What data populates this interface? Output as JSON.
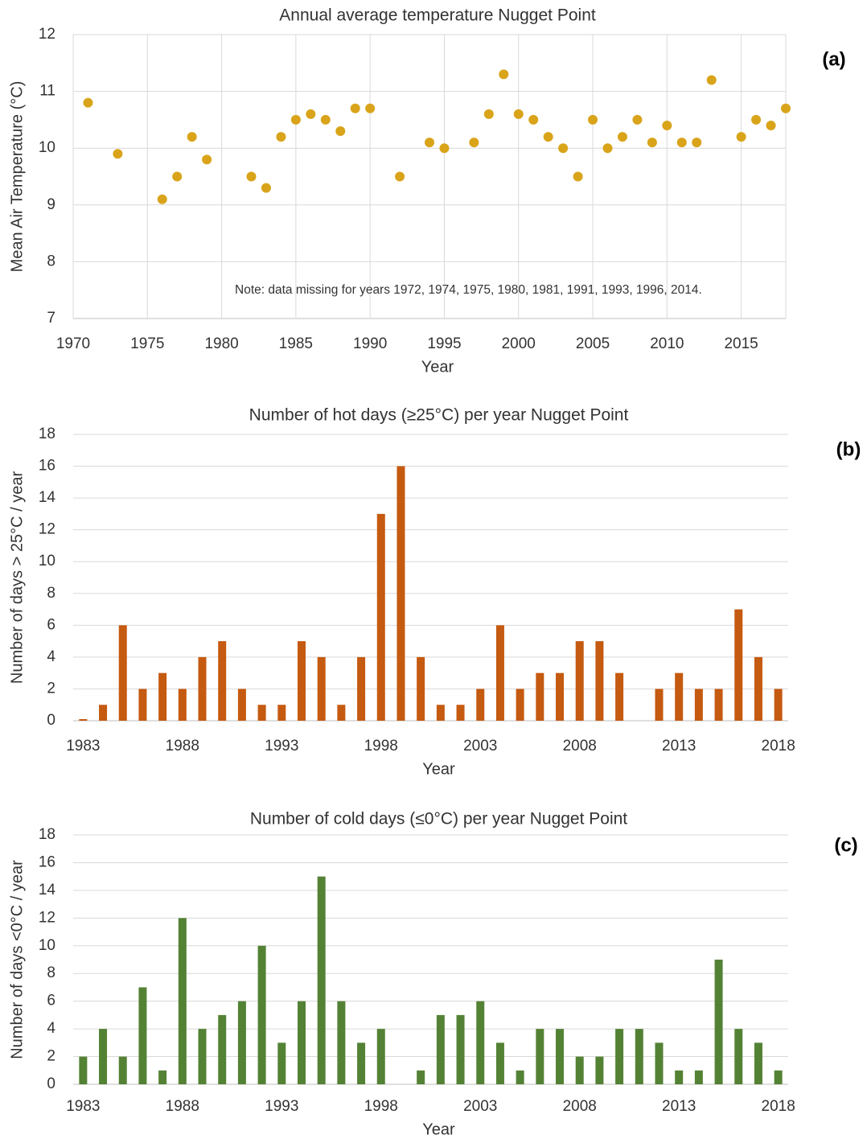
{
  "chart_data": [
    {
      "type": "scatter",
      "panel_label": "(a)",
      "title": "Annual average temperature Nugget Point",
      "x_label": "Year",
      "y_label": "Mean Air Temperature (°C)",
      "note": "Note: data missing for years 1972, 1974, 1975, 1980, 1981, 1991, 1993, 1996, 2014.",
      "color": "#d9a41a",
      "x": [
        1971,
        1973,
        1976,
        1977,
        1978,
        1979,
        1982,
        1983,
        1984,
        1985,
        1986,
        1987,
        1988,
        1989,
        1990,
        1992,
        1994,
        1995,
        1997,
        1998,
        1999,
        2000,
        2001,
        2002,
        2003,
        2004,
        2005,
        2006,
        2007,
        2008,
        2009,
        2010,
        2011,
        2012,
        2013,
        2015,
        2016,
        2017,
        2018
      ],
      "values": [
        10.8,
        9.9,
        9.1,
        9.5,
        10.2,
        9.8,
        9.5,
        9.3,
        10.2,
        10.5,
        10.6,
        10.5,
        10.3,
        10.7,
        10.7,
        9.5,
        10.1,
        10.0,
        10.1,
        10.6,
        11.3,
        10.6,
        10.5,
        10.2,
        10.0,
        9.5,
        10.5,
        10.0,
        10.2,
        10.5,
        10.1,
        10.4,
        10.1,
        10.1,
        11.2,
        10.2,
        10.5,
        10.4,
        10.7
      ],
      "xlim": [
        1970,
        2018
      ],
      "xticks": [
        1970,
        1975,
        1980,
        1985,
        1990,
        1995,
        2000,
        2005,
        2010,
        2015
      ],
      "ylim": [
        7,
        12
      ],
      "yticks": [
        7,
        8,
        9,
        10,
        11,
        12
      ],
      "grid": true,
      "xgrid": true
    },
    {
      "type": "bar",
      "panel_label": "(b)",
      "title": "Number of hot days (≥25°C) per year Nugget Point",
      "x_label": "Year",
      "y_label": "Number of days > 25°C / year",
      "color": "#c55a11",
      "categories": [
        "1983",
        null,
        null,
        null,
        null,
        "1988",
        null,
        null,
        null,
        null,
        "1993",
        null,
        null,
        null,
        null,
        "1998",
        null,
        null,
        null,
        null,
        "2003",
        null,
        null,
        null,
        null,
        "2008",
        null,
        null,
        null,
        null,
        "2013",
        null,
        null,
        null,
        null,
        "2018"
      ],
      "values": [
        0.1,
        1,
        6,
        2,
        3,
        2,
        4,
        5,
        2,
        1,
        1,
        5,
        4,
        1,
        4,
        13,
        16,
        4,
        1,
        1,
        2,
        6,
        2,
        3,
        3,
        5,
        5,
        3,
        0,
        2,
        3,
        2,
        2,
        7,
        4,
        2
      ],
      "ylim": [
        0,
        18
      ],
      "yticks": [
        0,
        2,
        4,
        6,
        8,
        10,
        12,
        14,
        16,
        18
      ],
      "grid": true,
      "xgrid": false
    },
    {
      "type": "bar",
      "panel_label": "(c)",
      "title": "Number of cold days (≤0°C) per year Nugget Point",
      "x_label": "Year",
      "y_label": "Number of days <0°C / year",
      "color": "#548235",
      "categories": [
        "1983",
        null,
        null,
        null,
        null,
        "1988",
        null,
        null,
        null,
        null,
        "1993",
        null,
        null,
        null,
        null,
        "1998",
        null,
        null,
        null,
        null,
        "2003",
        null,
        null,
        null,
        null,
        "2008",
        null,
        null,
        null,
        null,
        "2013",
        null,
        null,
        null,
        null,
        "2018"
      ],
      "values": [
        2,
        4,
        2,
        7,
        1,
        12,
        4,
        5,
        6,
        10,
        3,
        6,
        15,
        6,
        3,
        4,
        0,
        1,
        5,
        5,
        6,
        3,
        1,
        4,
        4,
        2,
        2,
        4,
        4,
        3,
        1,
        1,
        9,
        4,
        3,
        1
      ],
      "ylim": [
        0,
        18
      ],
      "yticks": [
        0,
        2,
        4,
        6,
        8,
        10,
        12,
        14,
        16,
        18
      ],
      "grid": true,
      "xgrid": false
    }
  ]
}
